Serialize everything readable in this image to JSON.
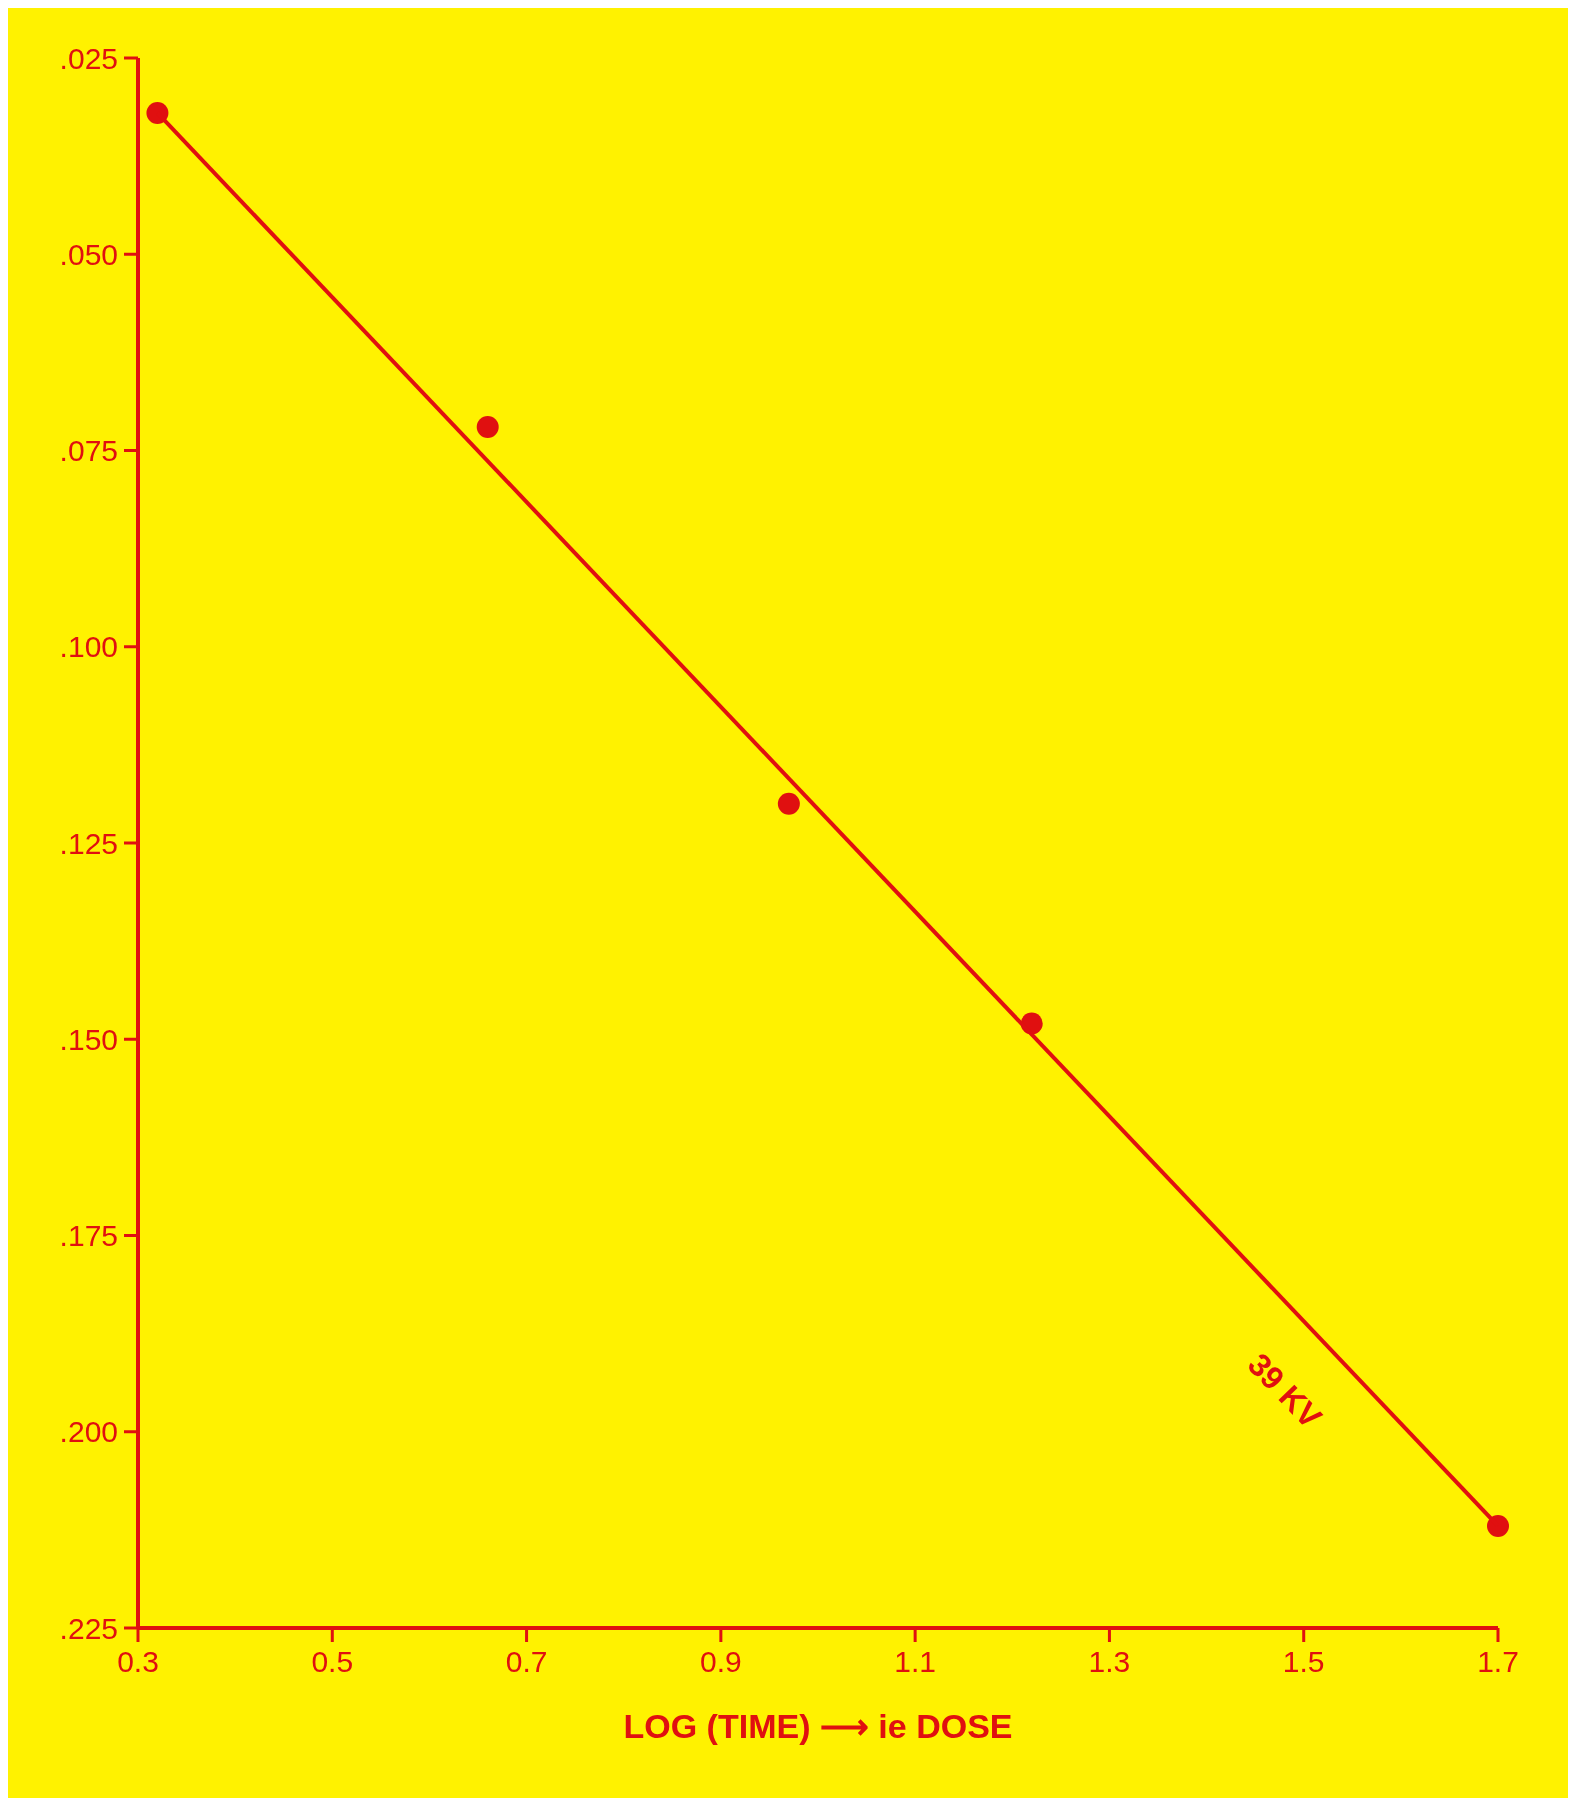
{
  "chart_data": {
    "type": "scatter",
    "xlabel": "LOG (TIME) ⟶ ie DOSE",
    "series": [
      {
        "color": "#e01010",
        "x": [
          0.32,
          0.66,
          0.97,
          1.22,
          1.7
        ],
        "values": [
          0.032,
          0.072,
          0.12,
          0.148,
          0.212
        ]
      },
      {
        "type": "line",
        "marker": "none",
        "color": "#e01010",
        "x": [
          0.32,
          1.7
        ],
        "values": [
          0.032,
          0.212
        ]
      }
    ],
    "annotations": [
      "39 KV"
    ],
    "xlim": [
      0.3,
      1.7
    ],
    "ylim": [
      0.225,
      0.025
    ],
    "xticks": [
      {
        "value": 0.3,
        "label": "0.3"
      },
      {
        "value": 0.5,
        "label": "0.5"
      },
      {
        "value": 0.7,
        "label": "0.7"
      },
      {
        "value": 0.9,
        "label": "0.9"
      },
      {
        "value": 1.1,
        "label": "1.1"
      },
      {
        "value": 1.3,
        "label": "1.3"
      },
      {
        "value": 1.5,
        "label": "1.5"
      },
      {
        "value": 1.7,
        "label": "1.7"
      }
    ],
    "yticks": [
      {
        "value": 0.025,
        "label": ".025"
      },
      {
        "value": 0.05,
        "label": ".050"
      },
      {
        "value": 0.075,
        "label": ".075"
      },
      {
        "value": 0.1,
        "label": ".100"
      },
      {
        "value": 0.125,
        "label": ".125"
      },
      {
        "value": 0.15,
        "label": ".150"
      },
      {
        "value": 0.175,
        "label": ".175"
      },
      {
        "value": 0.2,
        "label": ".200"
      },
      {
        "value": 0.225,
        "label": ".225"
      }
    ],
    "grid": false,
    "marker": "circle",
    "line_style": "solid"
  }
}
